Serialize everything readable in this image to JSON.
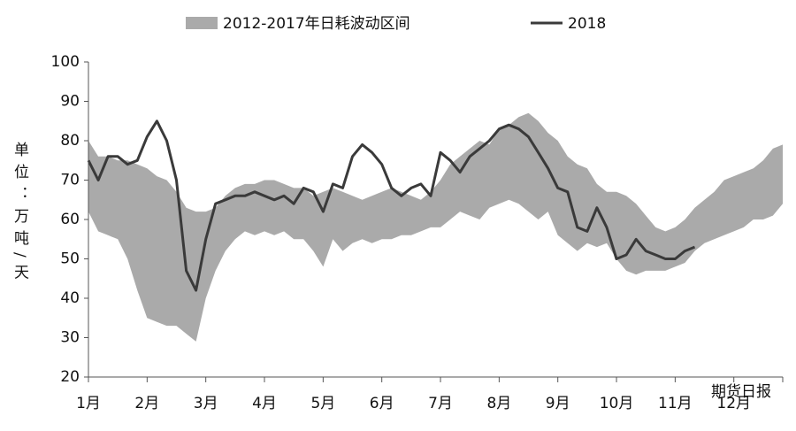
{
  "chart_data": {
    "type": "band-line",
    "categories": [
      "1月",
      null,
      null,
      null,
      null,
      null,
      "2月",
      null,
      null,
      null,
      null,
      null,
      "3月",
      null,
      null,
      null,
      null,
      null,
      "4月",
      null,
      null,
      null,
      null,
      null,
      "5月",
      null,
      null,
      null,
      null,
      null,
      "6月",
      null,
      null,
      null,
      null,
      null,
      "7月",
      null,
      null,
      null,
      null,
      null,
      "8月",
      null,
      null,
      null,
      null,
      null,
      "9月",
      null,
      null,
      null,
      null,
      null,
      "10月",
      null,
      null,
      null,
      null,
      null,
      "11月",
      null,
      null,
      null,
      null,
      null,
      "12月",
      null,
      null,
      null,
      null,
      null
    ],
    "series": [
      {
        "name": "2012-2017年日耗波动区间",
        "color": "#aaaaaa",
        "high": [
          80,
          76,
          76,
          75,
          75,
          74,
          73,
          71,
          70,
          67,
          63,
          62,
          62,
          63,
          66,
          68,
          69,
          69,
          70,
          70,
          69,
          68,
          68,
          66,
          67,
          68,
          67,
          66,
          65,
          66,
          67,
          68,
          67,
          66,
          65,
          67,
          70,
          74,
          76,
          78,
          80,
          79,
          83,
          84,
          86,
          87,
          85,
          82,
          80,
          76,
          74,
          73,
          69,
          67,
          67,
          66,
          64,
          61,
          58,
          57,
          58,
          60,
          63,
          65,
          67,
          70,
          71,
          72,
          73,
          75,
          78,
          79
        ],
        "low": [
          62,
          57,
          56,
          55,
          50,
          42,
          35,
          34,
          33,
          33,
          31,
          29,
          40,
          47,
          52,
          55,
          57,
          56,
          57,
          56,
          57,
          55,
          55,
          52,
          48,
          55,
          52,
          54,
          55,
          54,
          55,
          55,
          56,
          56,
          57,
          58,
          58,
          60,
          62,
          61,
          60,
          63,
          64,
          65,
          64,
          62,
          60,
          62,
          56,
          54,
          52,
          54,
          53,
          54,
          50,
          47,
          46,
          47,
          47,
          47,
          48,
          49,
          52,
          54,
          55,
          56,
          57,
          58,
          60,
          60,
          61,
          64
        ]
      },
      {
        "name": "2018",
        "color": "#3a3a3a",
        "values": [
          75,
          70,
          76,
          76,
          74,
          75,
          81,
          85,
          80,
          70,
          47,
          42,
          55,
          64,
          65,
          66,
          66,
          67,
          66,
          65,
          66,
          64,
          68,
          67,
          62,
          69,
          68,
          76,
          79,
          77,
          74,
          68,
          66,
          68,
          69,
          66,
          77,
          75,
          72,
          76,
          78,
          80,
          83,
          84,
          83,
          81,
          77,
          73,
          68,
          67,
          58,
          57,
          63,
          58,
          50,
          51,
          55,
          52,
          51,
          50,
          50,
          52,
          53,
          null,
          null,
          null,
          null,
          null,
          null,
          null,
          null,
          null
        ]
      }
    ],
    "ylabel": "单位：万吨/天",
    "ylim": [
      20,
      100
    ],
    "yticks": [
      20,
      30,
      40,
      50,
      60,
      70,
      80,
      90,
      100
    ],
    "annotation": "期货日报"
  }
}
